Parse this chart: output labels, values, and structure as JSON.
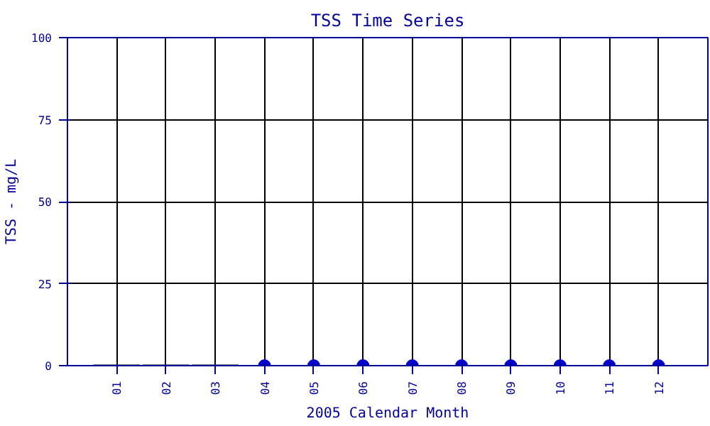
{
  "chart_data": {
    "type": "bar",
    "title": "TSS Time Series",
    "xlabel": "2005 Calendar Month",
    "ylabel": "TSS - mg/L",
    "categories": [
      "01",
      "02",
      "03",
      "04",
      "05",
      "06",
      "07",
      "08",
      "09",
      "10",
      "11",
      "12"
    ],
    "series": [
      {
        "color": "#808080",
        "values": [
          0,
          0,
          0,
          null,
          null,
          null,
          null,
          null,
          null,
          null,
          null,
          null
        ]
      },
      {
        "type": "scatter",
        "color": "#0000cc",
        "values": [
          null,
          null,
          null,
          0,
          0,
          0,
          0,
          0,
          0,
          0,
          0,
          0
        ]
      }
    ],
    "ylim": [
      0,
      100
    ],
    "yticks": [
      0,
      25,
      50,
      75,
      100
    ],
    "grid": true,
    "marker": "circle"
  }
}
